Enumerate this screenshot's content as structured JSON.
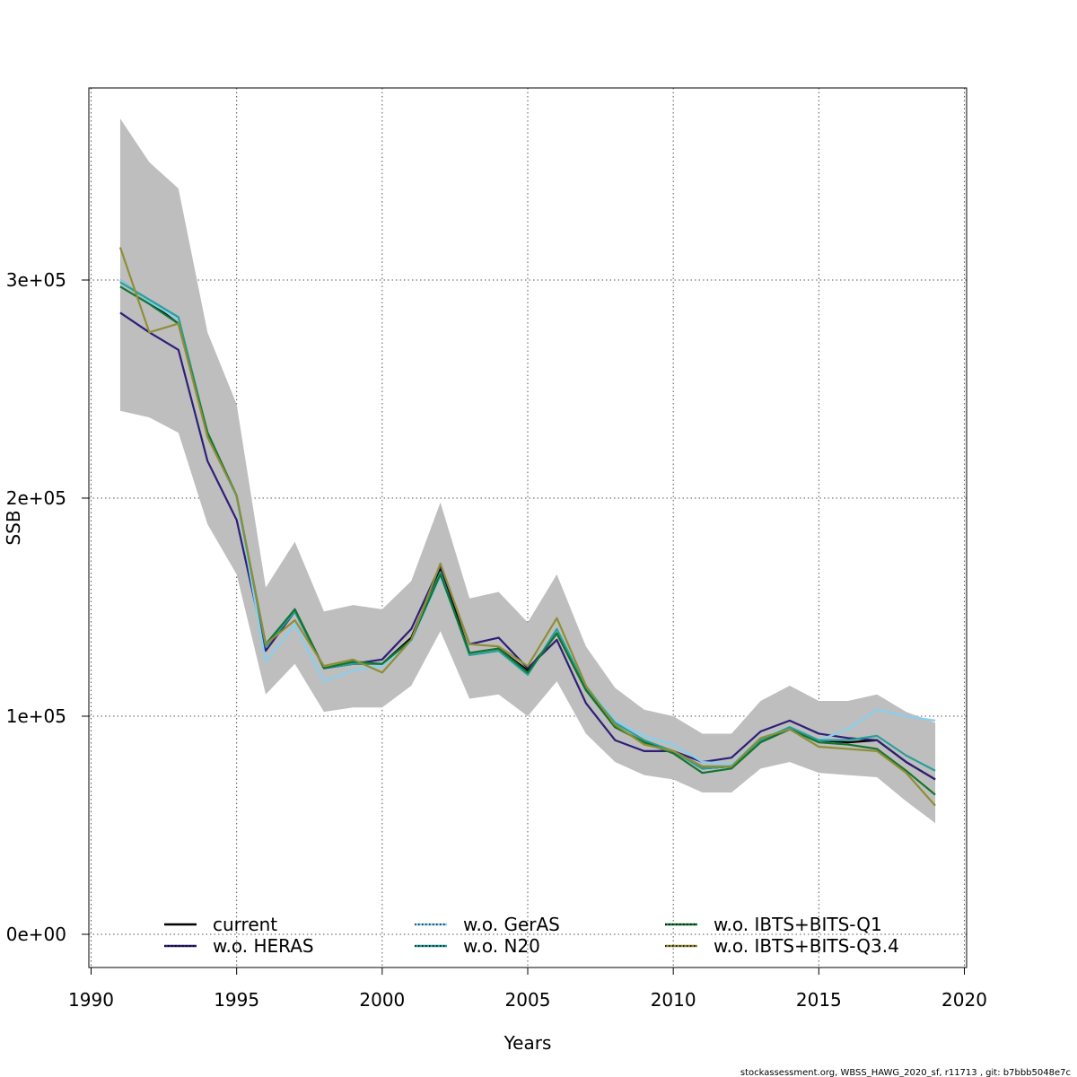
{
  "chart_data": {
    "type": "line",
    "title": "",
    "xlabel": "Years",
    "ylabel": "SSB",
    "xlim": [
      1990,
      2020
    ],
    "ylim": [
      -15000,
      390000
    ],
    "x_ticks": [
      1990,
      1995,
      2000,
      2005,
      2010,
      2015,
      2020
    ],
    "x_tick_labels": [
      "1990",
      "1995",
      "2000",
      "2005",
      "2010",
      "2015",
      "2020"
    ],
    "y_ticks": [
      0,
      100000,
      200000,
      300000
    ],
    "y_tick_labels": [
      "0e+00",
      "1e+05",
      "2e+05",
      "3e+05"
    ],
    "grid": true,
    "legend_position": "bottom",
    "x": [
      1991,
      1992,
      1993,
      1994,
      1995,
      1996,
      1997,
      1998,
      1999,
      2000,
      2001,
      2002,
      2003,
      2004,
      2005,
      2006,
      2007,
      2008,
      2009,
      2010,
      2011,
      2012,
      2013,
      2014,
      2015,
      2016,
      2017,
      2018,
      2019
    ],
    "confidence_band": {
      "label": "",
      "color": "#bebebe",
      "lower": [
        240000,
        237000,
        230000,
        188000,
        165000,
        110000,
        124000,
        102000,
        104000,
        104000,
        114000,
        139000,
        108000,
        110000,
        100000,
        116000,
        92000,
        79000,
        73000,
        71000,
        65000,
        65000,
        76000,
        79000,
        74000,
        73000,
        72000,
        61000,
        51000
      ],
      "upper": [
        374000,
        354000,
        342000,
        276000,
        243000,
        159000,
        180000,
        148000,
        151000,
        149000,
        162000,
        198000,
        154000,
        157000,
        143000,
        165000,
        132000,
        113000,
        103000,
        100000,
        92000,
        92000,
        107000,
        114000,
        107000,
        107000,
        110000,
        102000,
        97000
      ]
    },
    "series": [
      {
        "name": "current",
        "color": "#000000",
        "dotted": false,
        "values": [
          300000,
          290000,
          280000,
          230000,
          201000,
          132000,
          149000,
          122000,
          124000,
          124000,
          136000,
          168000,
          129000,
          131000,
          121000,
          138000,
          112000,
          95000,
          88000,
          84000,
          76000,
          77000,
          89000,
          94000,
          89000,
          88000,
          89000,
          79000,
          71000
        ]
      },
      {
        "name": "w.o. HERAS",
        "color": "#2e1e78",
        "dotted": true,
        "values": [
          285000,
          276000,
          268000,
          217000,
          190000,
          130000,
          148000,
          122000,
          124000,
          126000,
          140000,
          169000,
          133000,
          136000,
          122000,
          135000,
          106000,
          89000,
          84000,
          84000,
          79000,
          81000,
          93000,
          98000,
          92000,
          90000,
          89000,
          79000,
          71000
        ]
      },
      {
        "name": "w.o. GerAS",
        "color": "#87cfee",
        "dotted": true,
        "values": [
          300000,
          290000,
          282000,
          229000,
          200000,
          125000,
          142000,
          116000,
          121000,
          123000,
          134000,
          164000,
          129000,
          130000,
          119000,
          140000,
          114000,
          98000,
          91000,
          87000,
          79000,
          78000,
          90000,
          95000,
          89000,
          94000,
          103000,
          100000,
          98000
        ]
      },
      {
        "name": "w.o. N20",
        "color": "#2aa098",
        "dotted": true,
        "values": [
          299000,
          291000,
          283000,
          230000,
          201000,
          132000,
          148000,
          122000,
          124000,
          124000,
          135000,
          166000,
          128000,
          130000,
          119000,
          140000,
          113000,
          97000,
          89000,
          84000,
          76000,
          77000,
          89000,
          95000,
          89000,
          89000,
          91000,
          82000,
          75000
        ]
      },
      {
        "name": "w.o. IBTS+BITS-Q1",
        "color": "#137531",
        "dotted": true,
        "values": [
          297000,
          289000,
          280000,
          230000,
          201000,
          133000,
          149000,
          122000,
          125000,
          124000,
          135000,
          165000,
          129000,
          131000,
          120000,
          138000,
          112000,
          95000,
          88000,
          83000,
          74000,
          76000,
          88000,
          94000,
          88000,
          87000,
          85000,
          75000,
          64000
        ]
      },
      {
        "name": "w.o. IBTS+BITS-Q3.4",
        "color": "#8f8e36",
        "dotted": true,
        "values": [
          315000,
          276000,
          280000,
          228000,
          201000,
          133000,
          144000,
          123000,
          126000,
          120000,
          135000,
          170000,
          133000,
          132000,
          123000,
          145000,
          114000,
          96000,
          87000,
          84000,
          77000,
          77000,
          90000,
          94000,
          86000,
          85000,
          84000,
          74000,
          59000
        ]
      }
    ],
    "legend": [
      {
        "label": "current",
        "color": "#000000"
      },
      {
        "label": "w.o. HERAS",
        "color": "#2e1e78"
      },
      {
        "label": "w.o. GerAS",
        "color": "#87cfee"
      },
      {
        "label": "w.o. N20",
        "color": "#2aa098"
      },
      {
        "label": "w.o. IBTS+BITS-Q1",
        "color": "#137531"
      },
      {
        "label": "w.o. IBTS+BITS-Q3.4",
        "color": "#8f8e36"
      }
    ]
  },
  "footer": {
    "note": "stockassessment.org, WBSS_HAWG_2020_sf, r11713 , git: b7bbb5048e7c"
  }
}
